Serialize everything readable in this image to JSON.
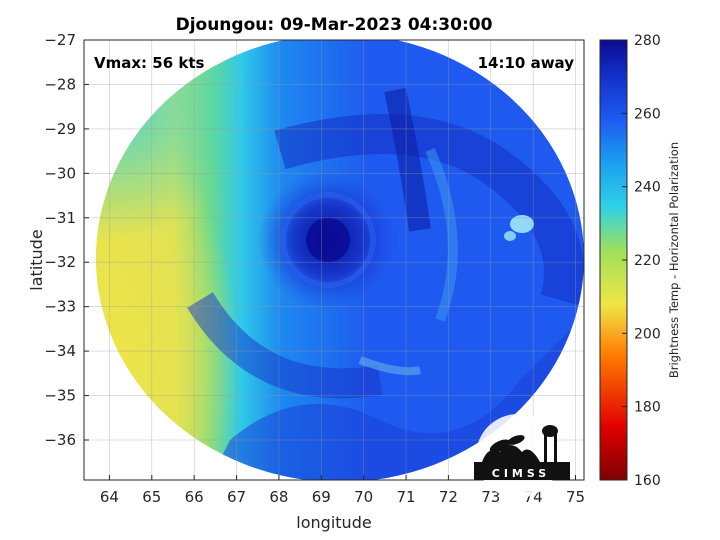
{
  "chart_data": {
    "type": "heatmap",
    "title": "Djoungou: 09-Mar-2023 04:30:00",
    "annotation_left": "Vmax: 56 kts",
    "annotation_right": "14:10 away",
    "xlabel": "longitude",
    "ylabel": "latitude",
    "xlim": [
      63.4,
      75.2
    ],
    "ylim": [
      -36.9,
      -27
    ],
    "xticks": [
      64,
      65,
      66,
      67,
      68,
      69,
      70,
      71,
      72,
      73,
      74,
      75
    ],
    "yticks": [
      -27,
      -28,
      -29,
      -30,
      -31,
      -32,
      -33,
      -34,
      -35,
      -36
    ],
    "grid": true,
    "colorbar": {
      "label": "Brightness Temp - Horizontal Polarization",
      "range": [
        160,
        280
      ],
      "ticks": [
        160,
        180,
        200,
        220,
        240,
        260,
        280
      ]
    },
    "swath": {
      "center": [
        69.2,
        -31.8
      ],
      "cold_core": [
        69.0,
        -31.8
      ],
      "cold_core_value": 272,
      "typical_cloud_value": 262,
      "background_west_value": 205
    },
    "logo_text": "CIMSS",
    "colors": {
      "cold": "#0a0a90",
      "mid": "#1e5af0",
      "cyan": "#2fd2e6",
      "yellow": "#f0e646",
      "warm": "#b40000"
    }
  }
}
